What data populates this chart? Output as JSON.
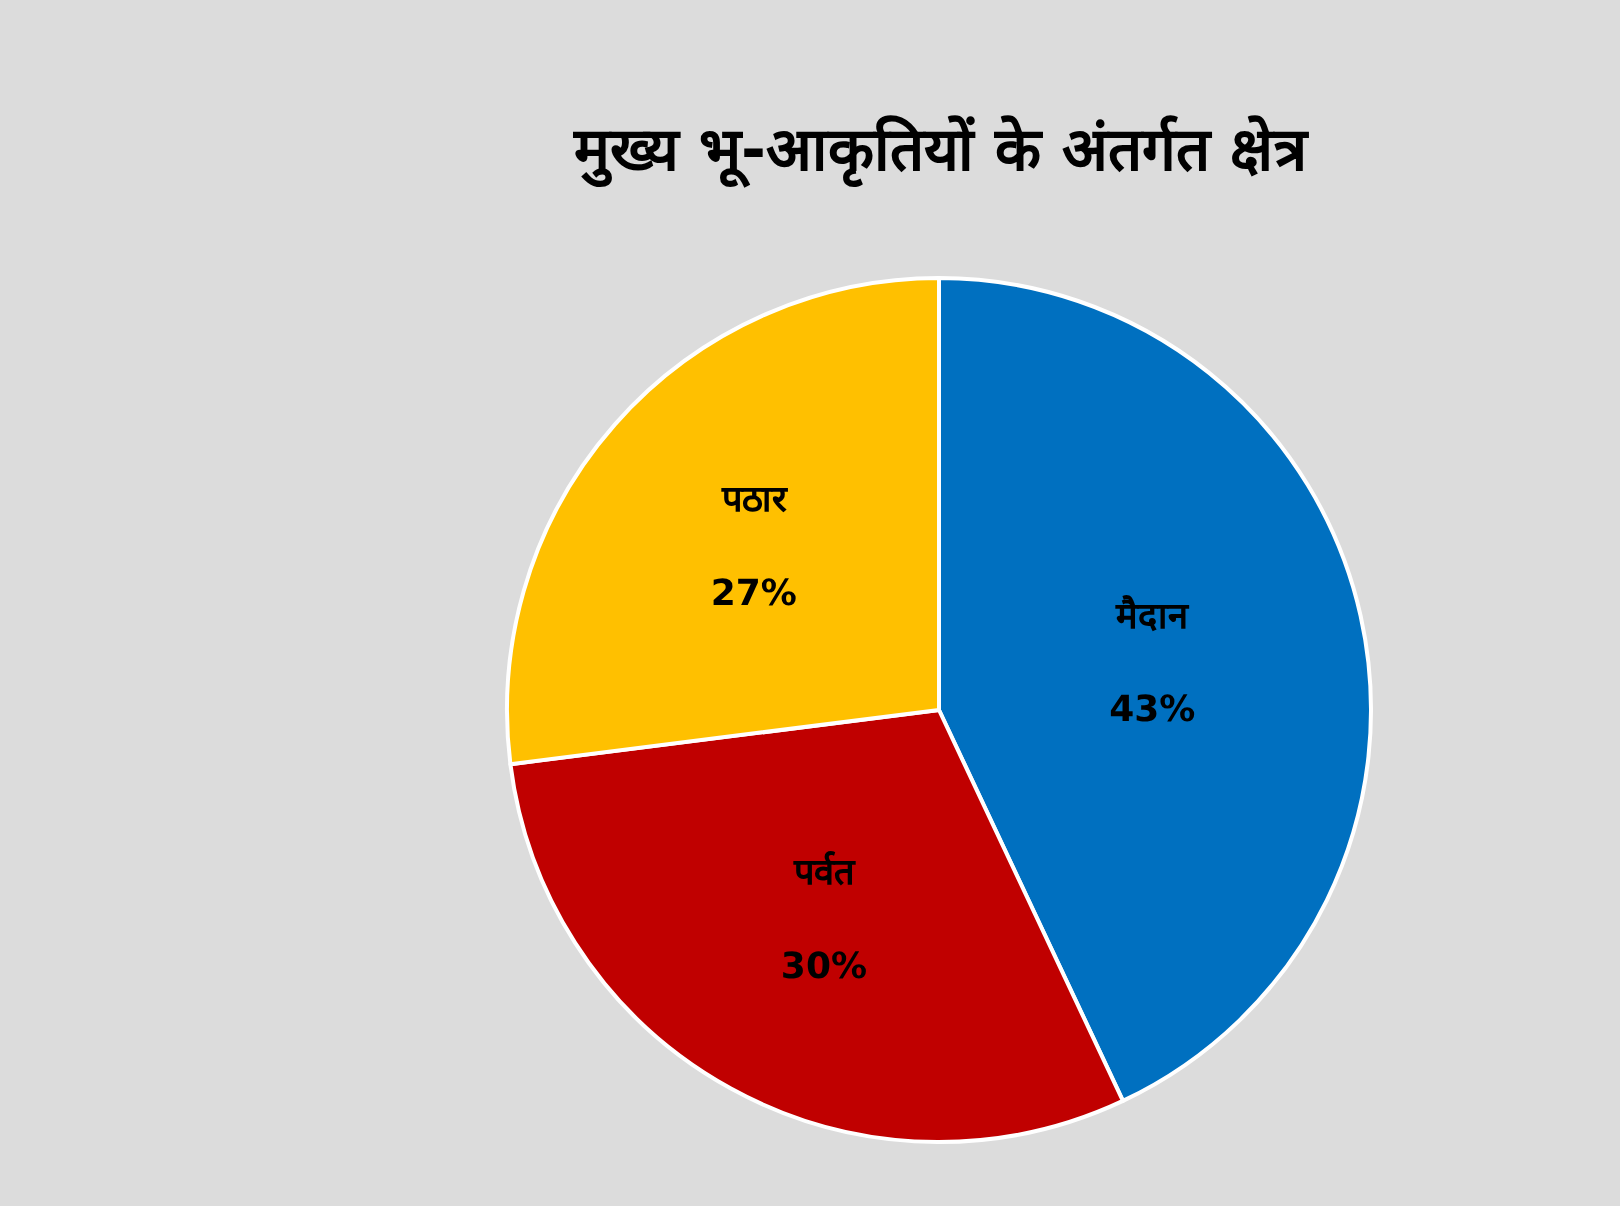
{
  "chart_data": {
    "type": "pie",
    "title": "मुख्य भू-आकृतियों के अंतर्गत क्षेत्र",
    "categories": [
      "मैदान",
      "पर्वत",
      "पठार"
    ],
    "values": [
      43,
      30,
      27
    ],
    "value_labels": [
      "43%",
      "30%",
      "27%"
    ],
    "colors": [
      "#0070c0",
      "#c00000",
      "#ffc000"
    ],
    "legend": false
  }
}
